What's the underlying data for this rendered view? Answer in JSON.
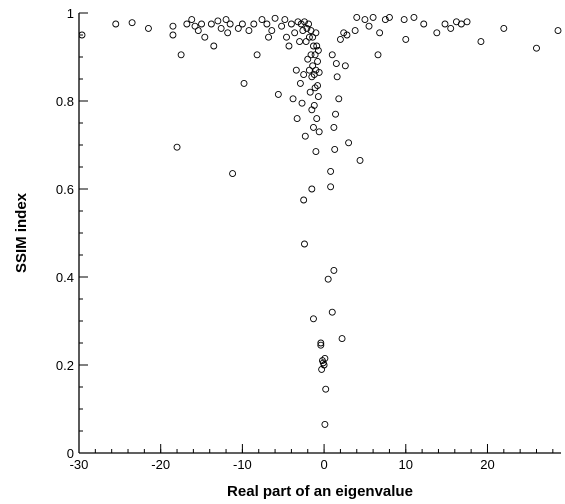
{
  "chart_data": {
    "type": "scatter",
    "title": "",
    "xlabel": "Real part of an eigenvalue",
    "ylabel": "SSIM index",
    "xlim": [
      -30,
      29
    ],
    "ylim": [
      0,
      1
    ],
    "x_major_ticks": [
      -30,
      -20,
      -10,
      0,
      10,
      20
    ],
    "x_minor_step": 2,
    "y_major_ticks": [
      0,
      0.2,
      0.4,
      0.6,
      0.8,
      1
    ],
    "y_minor_step": 0.05,
    "x_tick_labels": [
      "-30",
      "-20",
      "-10",
      "0",
      "10",
      "20"
    ],
    "y_tick_labels": [
      "0",
      "0.2",
      "0.4",
      "0.6",
      "0.8",
      "1"
    ],
    "grid": false,
    "legend": "none",
    "marker": "open-circle",
    "series": [
      {
        "points": [
          [
            -30.5,
            0.95
          ],
          [
            -25.5,
            0.975
          ],
          [
            -23.5,
            0.978
          ],
          [
            -21.5,
            0.965
          ],
          [
            -18.5,
            0.97
          ],
          [
            -18.5,
            0.95
          ],
          [
            -17.5,
            0.905
          ],
          [
            -18.0,
            0.695
          ],
          [
            -16.8,
            0.975
          ],
          [
            -16.2,
            0.985
          ],
          [
            -15.8,
            0.97
          ],
          [
            -15.4,
            0.96
          ],
          [
            -15.0,
            0.975
          ],
          [
            -14.6,
            0.945
          ],
          [
            -13.8,
            0.975
          ],
          [
            -13.5,
            0.925
          ],
          [
            -13.0,
            0.982
          ],
          [
            -12.6,
            0.965
          ],
          [
            -12.0,
            0.985
          ],
          [
            -11.8,
            0.955
          ],
          [
            -11.5,
            0.975
          ],
          [
            -11.2,
            0.635
          ],
          [
            -10.5,
            0.965
          ],
          [
            -10.0,
            0.975
          ],
          [
            -9.8,
            0.84
          ],
          [
            -9.2,
            0.96
          ],
          [
            -8.6,
            0.975
          ],
          [
            -8.2,
            0.905
          ],
          [
            -7.6,
            0.985
          ],
          [
            -7.0,
            0.975
          ],
          [
            -6.8,
            0.945
          ],
          [
            -6.4,
            0.96
          ],
          [
            -6.0,
            0.988
          ],
          [
            -5.6,
            0.815
          ],
          [
            -5.2,
            0.97
          ],
          [
            -4.8,
            0.985
          ],
          [
            -4.6,
            0.945
          ],
          [
            -4.3,
            0.925
          ],
          [
            -4.0,
            0.975
          ],
          [
            -3.8,
            0.805
          ],
          [
            -3.6,
            0.955
          ],
          [
            -3.4,
            0.87
          ],
          [
            -3.3,
            0.76
          ],
          [
            -3.2,
            0.98
          ],
          [
            -3.0,
            0.935
          ],
          [
            -2.9,
            0.84
          ],
          [
            -2.8,
            0.975
          ],
          [
            -2.7,
            0.795
          ],
          [
            -2.6,
            0.96
          ],
          [
            -2.5,
            0.86
          ],
          [
            -2.4,
            0.98
          ],
          [
            -2.3,
            0.72
          ],
          [
            -2.2,
            0.935
          ],
          [
            -2.1,
            0.965
          ],
          [
            -2.0,
            0.895
          ],
          [
            -1.9,
            0.975
          ],
          [
            -1.8,
            0.87
          ],
          [
            -1.8,
            0.945
          ],
          [
            -1.7,
            0.82
          ],
          [
            -1.6,
            0.96
          ],
          [
            -1.6,
            0.905
          ],
          [
            -1.5,
            0.855
          ],
          [
            -1.5,
            0.78
          ],
          [
            -1.4,
            0.945
          ],
          [
            -1.4,
            0.88
          ],
          [
            -1.3,
            0.925
          ],
          [
            -1.3,
            0.74
          ],
          [
            -1.2,
            0.86
          ],
          [
            -1.2,
            0.79
          ],
          [
            -1.1,
            0.905
          ],
          [
            -1.1,
            0.83
          ],
          [
            -1.0,
            0.955
          ],
          [
            -1.0,
            0.87
          ],
          [
            -0.9,
            0.925
          ],
          [
            -0.9,
            0.76
          ],
          [
            -0.8,
            0.89
          ],
          [
            -0.8,
            0.835
          ],
          [
            -0.7,
            0.915
          ],
          [
            -0.7,
            0.81
          ],
          [
            -0.6,
            0.865
          ],
          [
            -0.6,
            0.73
          ],
          [
            -1.0,
            0.685
          ],
          [
            -2.5,
            0.575
          ],
          [
            -2.4,
            0.475
          ],
          [
            -1.5,
            0.6
          ],
          [
            -1.3,
            0.305
          ],
          [
            -0.4,
            0.25
          ],
          [
            -0.4,
            0.245
          ],
          [
            -0.2,
            0.21
          ],
          [
            -0.1,
            0.205
          ],
          [
            0.0,
            0.2
          ],
          [
            0.1,
            0.215
          ],
          [
            -0.3,
            0.19
          ],
          [
            0.2,
            0.145
          ],
          [
            0.1,
            0.065
          ],
          [
            0.5,
            0.395
          ],
          [
            1.2,
            0.415
          ],
          [
            1.0,
            0.32
          ],
          [
            2.2,
            0.26
          ],
          [
            0.8,
            0.64
          ],
          [
            0.8,
            0.605
          ],
          [
            1.2,
            0.74
          ],
          [
            1.4,
            0.77
          ],
          [
            1.0,
            0.905
          ],
          [
            1.5,
            0.885
          ],
          [
            1.6,
            0.855
          ],
          [
            1.8,
            0.805
          ],
          [
            1.3,
            0.69
          ],
          [
            2.0,
            0.94
          ],
          [
            2.4,
            0.955
          ],
          [
            2.6,
            0.88
          ],
          [
            2.8,
            0.95
          ],
          [
            3.0,
            0.705
          ],
          [
            3.8,
            0.96
          ],
          [
            4.0,
            0.99
          ],
          [
            4.4,
            0.665
          ],
          [
            5.0,
            0.985
          ],
          [
            5.5,
            0.97
          ],
          [
            6.0,
            0.99
          ],
          [
            6.6,
            0.905
          ],
          [
            6.8,
            0.955
          ],
          [
            7.5,
            0.985
          ],
          [
            8.0,
            0.99
          ],
          [
            9.8,
            0.985
          ],
          [
            10.0,
            0.94
          ],
          [
            11.0,
            0.99
          ],
          [
            12.2,
            0.975
          ],
          [
            13.8,
            0.955
          ],
          [
            14.8,
            0.975
          ],
          [
            15.5,
            0.965
          ],
          [
            16.2,
            0.98
          ],
          [
            16.8,
            0.975
          ],
          [
            17.5,
            0.98
          ],
          [
            19.2,
            0.935
          ],
          [
            22.0,
            0.965
          ],
          [
            26.0,
            0.92
          ],
          [
            28.8,
            0.96
          ]
        ]
      }
    ]
  }
}
